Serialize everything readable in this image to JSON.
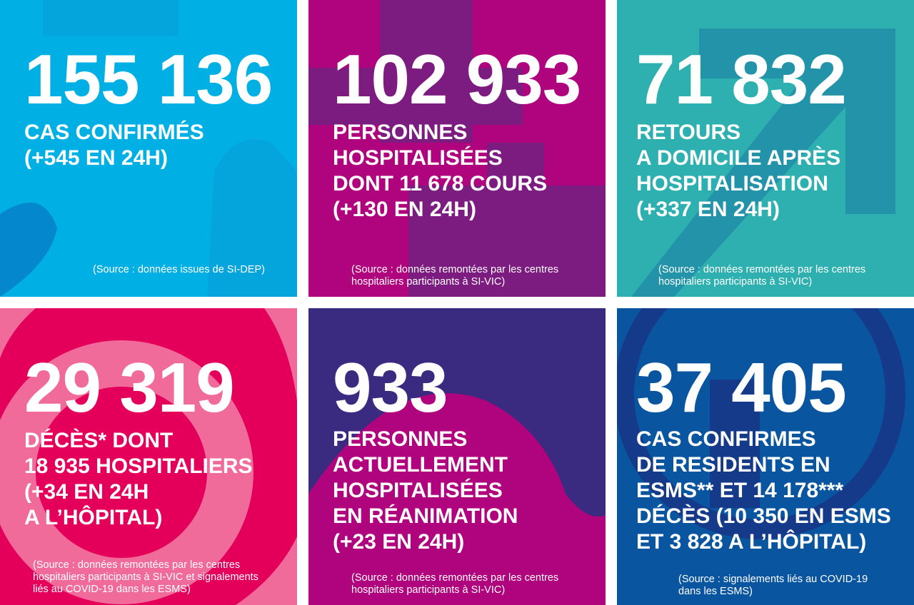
{
  "tiles": [
    {
      "number": "155 136",
      "label": "CAS CONFIRMÉS\n(+545 EN 24H)",
      "source": "(Source : données issues de SI-DEP)",
      "color": "#00b0e4"
    },
    {
      "number": "102 933",
      "label": "PERSONNES\nHOSPITALISÉES\nDONT 11 678 COURS\n(+130 EN 24H)",
      "source": "(Source : données remontées par les centres\nhospitaliers participants à SI-VIC)",
      "color": "#b0047e"
    },
    {
      "number": "71 832",
      "label": "RETOURS\nA DOMICILE APRÈS\nHOSPITALISATION\n(+337 EN 24H)",
      "source": "(Source : données remontées par les centres\nhospitaliers participants à SI-VIC)",
      "color": "#2eb0b0"
    },
    {
      "number": "29 319",
      "label": "DÉCÈS* DONT\n18 935 HOSPITALIERS\n(+34 EN 24H\nA L’HÔPITAL)",
      "source": "(Source : données remontées par les centres\nhospitaliers participants à SI-VIC et signalements\nliés au COVID-19 dans les ESMS)",
      "color": "#f06b9a"
    },
    {
      "number": "933",
      "label": "PERSONNES\nACTUELLEMENT\nHOSPITALISÉES\nEN RÉANIMATION\n(+23 EN 24H)",
      "source": "(Source : données remontées par les centres\nhospitaliers participants à SI-VIC)",
      "color": "#3a2a80"
    },
    {
      "number": "37 405",
      "label": "CAS CONFIRMES\nDE RESIDENTS EN\nESMS** ET 14 178***\nDÉCÈS (10 350 EN ESMS\nET 3 828 A L’HÔPITAL)",
      "source": "(Source : signalements liés au COVID-19\ndans les ESMS)",
      "color": "#0a55a0"
    }
  ]
}
